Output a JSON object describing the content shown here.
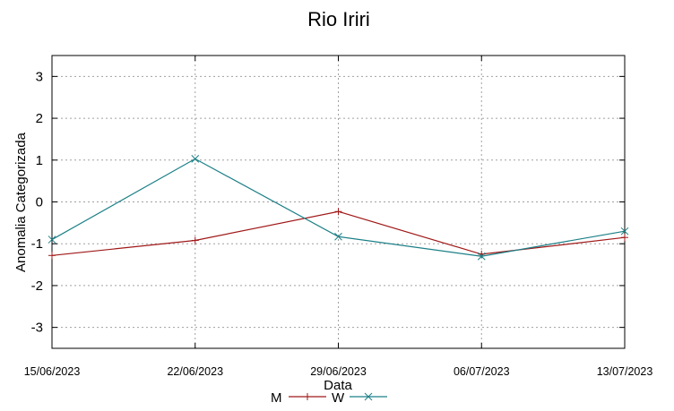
{
  "chart_data": {
    "type": "line",
    "title": "Rio Iriri",
    "xlabel": "Data",
    "ylabel": "Anomalia Categorizada",
    "categories": [
      "15/06/2023",
      "22/06/2023",
      "29/06/2023",
      "06/07/2023",
      "13/07/2023"
    ],
    "ylim": [
      -3.5,
      3.5
    ],
    "yticks": [
      3,
      2,
      1,
      0,
      -1,
      -2,
      -3
    ],
    "grid": true,
    "legend_position": "bottom",
    "series": [
      {
        "name": "M",
        "color": "#a01818",
        "marker": "plus",
        "values": [
          -1.28,
          -0.92,
          -0.23,
          -1.25,
          -0.85
        ]
      },
      {
        "name": "W",
        "color": "#1a7f86",
        "marker": "x",
        "values": [
          -0.9,
          1.03,
          -0.83,
          -1.3,
          -0.7
        ]
      }
    ]
  }
}
